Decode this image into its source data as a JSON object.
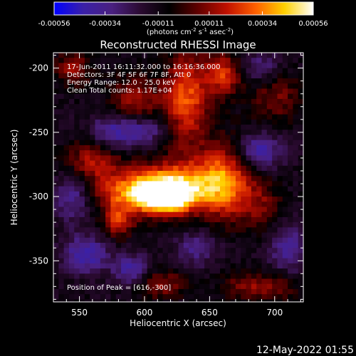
{
  "chart_data": {
    "type": "heatmap",
    "title": "Reconstructed RHESSI Image",
    "xlabel": "Heliocentric X (arcsec)",
    "ylabel": "Heliocentric Y (arcsec)",
    "xlim": [
      530,
      722
    ],
    "ylim": [
      -382,
      -188
    ],
    "x_ticks": [
      550,
      600,
      650,
      700
    ],
    "y_ticks": [
      -200,
      -250,
      -300,
      -350
    ],
    "colorbar": {
      "min": -0.00056,
      "max": 0.00056,
      "ticks": [
        "-0.00056",
        "-0.00034",
        "-0.00011",
        "0.00011",
        "0.00034",
        "0.00056"
      ],
      "tick_values": [
        -0.00056,
        -0.00034,
        -0.00011,
        0.00011,
        0.00034,
        0.00056
      ],
      "label_prefix": "(photons cm",
      "label_sup1": "-2",
      "label_mid": " s",
      "label_sup2": "-1",
      "label_mid2": " asec",
      "label_sup3": "-2",
      "label_suffix": ")",
      "stops": [
        "#0000ff",
        "#3a20a8",
        "#4a2080",
        "#2a0a30",
        "#000000",
        "#600000",
        "#c01000",
        "#ff6000",
        "#ffd000",
        "#ffffff"
      ]
    },
    "annotations": [
      "17-Jun-2011 16:11:32.000 to 16:16:36.000",
      "Detectors: 3F 4F 5F 6F 7F 8F, Att 0",
      "Energy Range: 12.0 - 25.0 keV",
      "Clean     Total counts: 1.17E+04"
    ],
    "peak_label": "Position of Peak = [616,-300]",
    "peak": [
      616,
      -300
    ],
    "pixel_size": 4,
    "sources": [
      {
        "x": 616,
        "y": -300,
        "sx": 14,
        "sy": 9,
        "amp": 1.0
      },
      {
        "x": 628,
        "y": -292,
        "sx": 28,
        "sy": 14,
        "amp": 0.8
      },
      {
        "x": 590,
        "y": -297,
        "sx": 22,
        "sy": 11,
        "amp": 0.62
      },
      {
        "x": 662,
        "y": -287,
        "sx": 14,
        "sy": 22,
        "amp": 0.62
      },
      {
        "x": 560,
        "y": -272,
        "sx": 15,
        "sy": 11,
        "amp": 0.52
      },
      {
        "x": 580,
        "y": -320,
        "sx": 8,
        "sy": 9,
        "amp": 0.55
      },
      {
        "x": 632,
        "y": -225,
        "sx": 12,
        "sy": 26,
        "amp": 0.72
      },
      {
        "x": 660,
        "y": -205,
        "sx": 10,
        "sy": 12,
        "amp": 0.6
      },
      {
        "x": 592,
        "y": -225,
        "sx": 14,
        "sy": 14,
        "amp": 0.45
      },
      {
        "x": 700,
        "y": -222,
        "sx": 14,
        "sy": 14,
        "amp": 0.38
      },
      {
        "x": 690,
        "y": -308,
        "sx": 12,
        "sy": 14,
        "amp": 0.32
      },
      {
        "x": 612,
        "y": -368,
        "sx": 16,
        "sy": 8,
        "amp": 0.42
      },
      {
        "x": 680,
        "y": -370,
        "sx": 14,
        "sy": 8,
        "amp": 0.4
      },
      {
        "x": 545,
        "y": -200,
        "sx": 10,
        "sy": 10,
        "amp": 0.42
      },
      {
        "x": 705,
        "y": -370,
        "sx": 10,
        "sy": 8,
        "amp": 0.3
      },
      {
        "x": 545,
        "y": -300,
        "sx": 10,
        "sy": 14,
        "amp": -0.45
      },
      {
        "x": 555,
        "y": -345,
        "sx": 12,
        "sy": 10,
        "amp": -0.55
      },
      {
        "x": 590,
        "y": -358,
        "sx": 10,
        "sy": 9,
        "amp": -0.5
      },
      {
        "x": 575,
        "y": -250,
        "sx": 12,
        "sy": 10,
        "amp": -0.45
      },
      {
        "x": 600,
        "y": -248,
        "sx": 14,
        "sy": 8,
        "amp": -0.45
      },
      {
        "x": 688,
        "y": -265,
        "sx": 12,
        "sy": 10,
        "amp": -0.55
      },
      {
        "x": 710,
        "y": -340,
        "sx": 10,
        "sy": 14,
        "amp": -0.45
      },
      {
        "x": 640,
        "y": -340,
        "sx": 12,
        "sy": 10,
        "amp": -0.35
      },
      {
        "x": 690,
        "y": -200,
        "sx": 10,
        "sy": 10,
        "amp": -0.35
      }
    ]
  },
  "footer": {
    "date": "12-May-2022 01:55"
  }
}
